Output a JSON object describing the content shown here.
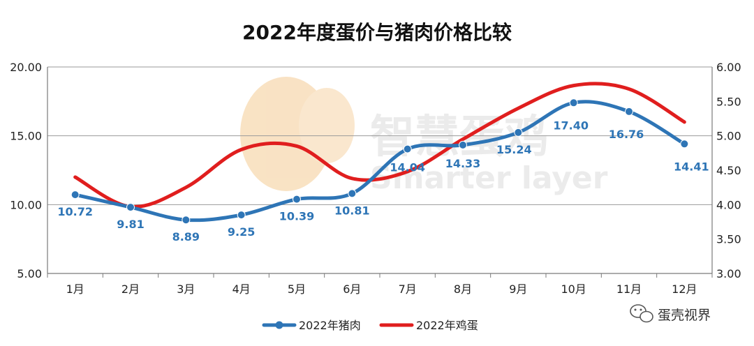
{
  "chart_data": {
    "type": "line",
    "title": "2022年度蛋价与猪肉价格比较",
    "categories": [
      "1月",
      "2月",
      "3月",
      "4月",
      "5月",
      "6月",
      "7月",
      "8月",
      "9月",
      "10月",
      "11月",
      "12月"
    ],
    "y_left": {
      "ylim": [
        5,
        20
      ],
      "ticks": [
        "5.00",
        "10.00",
        "15.00",
        "20.00"
      ]
    },
    "y_right": {
      "ylim": [
        3,
        6
      ],
      "ticks": [
        "3.00",
        "3.50",
        "4.00",
        "4.50",
        "5.00",
        "5.50",
        "6.00"
      ]
    },
    "grid": true,
    "legend_position": "bottom",
    "series": [
      {
        "name": "2022年猪肉",
        "axis": "left",
        "color": "#2e75b6",
        "markers": true,
        "values": [
          10.72,
          9.81,
          8.89,
          9.25,
          10.39,
          10.81,
          14.04,
          14.33,
          15.24,
          17.4,
          16.76,
          14.41
        ],
        "labels": [
          "10.72",
          "9.81",
          "8.89",
          "9.25",
          "10.39",
          "10.81",
          "14.04",
          "14.33",
          "15.24",
          "17.40",
          "16.76",
          "14.41"
        ]
      },
      {
        "name": "2022年鸡蛋",
        "axis": "right",
        "color": "#e01e1e",
        "markers": false,
        "values": [
          4.4,
          3.97,
          4.25,
          4.8,
          4.85,
          4.38,
          4.48,
          4.95,
          5.4,
          5.73,
          5.68,
          5.2
        ]
      }
    ]
  },
  "watermark": {
    "cn": "智慧蛋鸡",
    "en": "Smarter layer"
  },
  "corner_label": "蛋壳视界",
  "corner_icon": "wechat-icon"
}
